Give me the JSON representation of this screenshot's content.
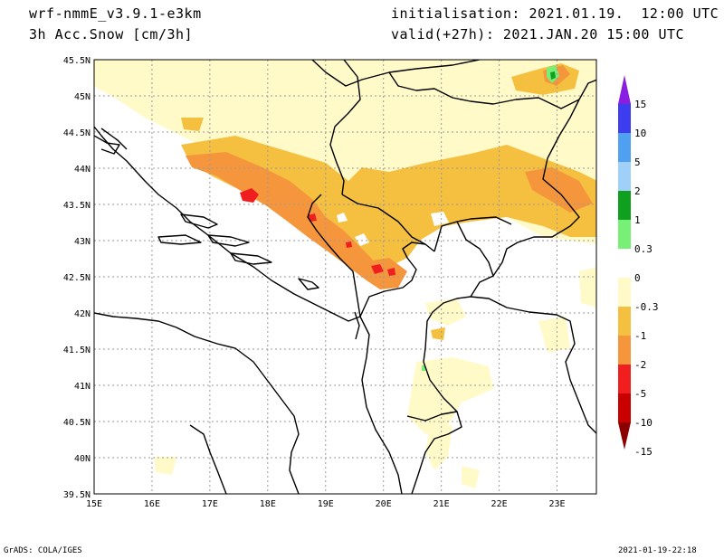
{
  "header": {
    "model": "wrf-nmmE_v3.9.1-e3km",
    "field": "3h Acc.Snow [cm/3h]",
    "init": "initialisation: 2021.01.19.  12:00 UTC",
    "valid": "valid(+27h): 2021.JAN.20 15:00 UTC"
  },
  "footer": {
    "left": "GrADS: COLA/IGES",
    "right": "2021-01-19-22:18"
  },
  "axes": {
    "lon_labels": [
      "15E",
      "16E",
      "17E",
      "18E",
      "19E",
      "20E",
      "21E",
      "22E",
      "23E"
    ],
    "lat_labels": [
      "45.5N",
      "45N",
      "44.5N",
      "44N",
      "43.5N",
      "43N",
      "42.5N",
      "42N",
      "41.5N",
      "41N",
      "40.5N",
      "40N",
      "39.5N"
    ]
  },
  "colorbar": {
    "labels": [
      "15",
      "10",
      "5",
      "2",
      "1",
      "0.3",
      "0",
      "-0.3",
      "-1",
      "-2",
      "-5",
      "-10",
      "-15"
    ],
    "colors": [
      "#8a1ee0",
      "#3c3cf0",
      "#4fa0f0",
      "#a0d0f8",
      "#10a020",
      "#78f078",
      "#ffffff",
      "#fffac8",
      "#f5c040",
      "#f5963c",
      "#f01e1e",
      "#c80000",
      "#8c0000"
    ]
  },
  "map": {
    "grid": true,
    "colors": {
      "light_snow": "#fffac8",
      "snow_1_2": "#f5c040",
      "snow_2_5": "#f5963c",
      "snow_5_10": "#f01e1e",
      "positive": "#78f078",
      "border": "#000000"
    }
  }
}
